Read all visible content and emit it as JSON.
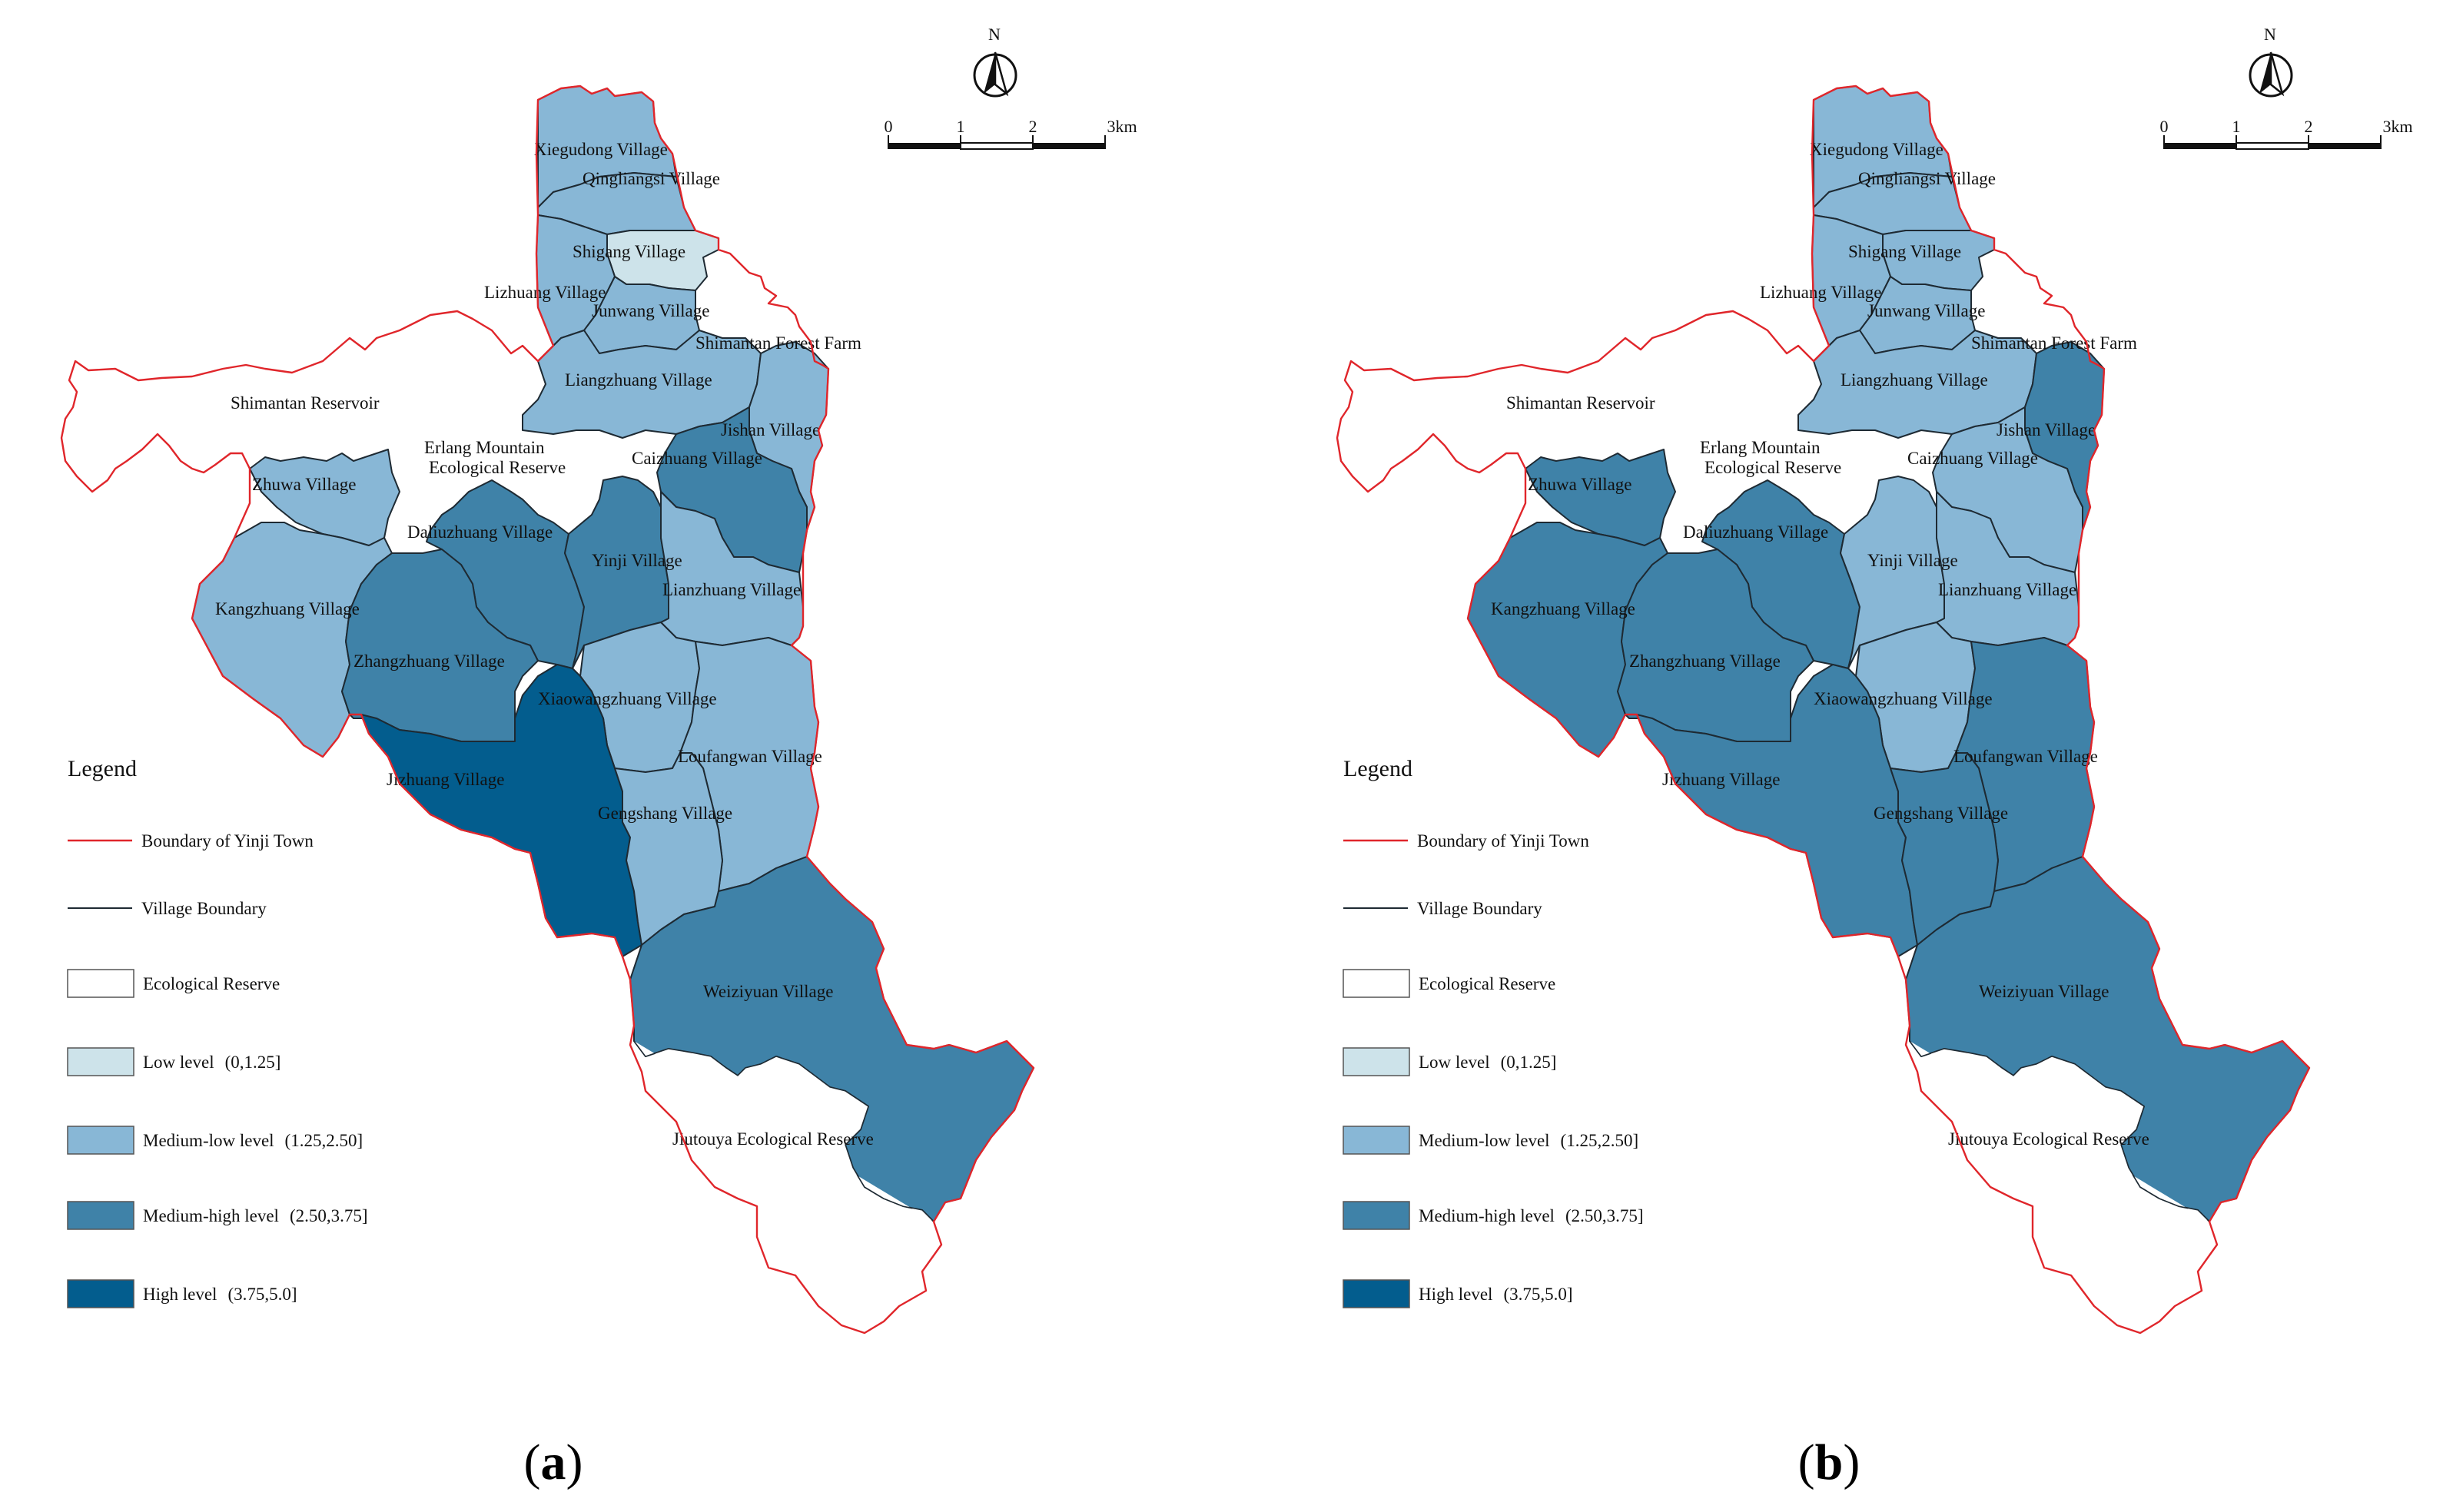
{
  "colors": {
    "boundary": "#e0262b",
    "village_boundary": "#1e2a33",
    "ecological": "#ffffff",
    "low": "#cde3ea",
    "medium_low": "#88b7d6",
    "medium_high": "#3f82a8",
    "high": "#035d8e"
  },
  "legend": {
    "title": "Legend",
    "items": [
      {
        "key": "boundary",
        "label": "Boundary of Yinji Town",
        "kind": "line-red"
      },
      {
        "key": "village",
        "label": "Village Boundary",
        "kind": "line-dark"
      },
      {
        "key": "eco",
        "label": "Ecological Reserve",
        "kind": "fill",
        "color_key": "ecological"
      },
      {
        "key": "low",
        "label": "Low level",
        "range": "(0,1.25]",
        "kind": "fill",
        "color_key": "low"
      },
      {
        "key": "mlow",
        "label": "Medium-low level",
        "range": "(1.25,2.50]",
        "kind": "fill",
        "color_key": "medium_low"
      },
      {
        "key": "mhigh",
        "label": "Medium-high level",
        "range": "(2.50,3.75]",
        "kind": "fill",
        "color_key": "medium_high"
      },
      {
        "key": "high",
        "label": "High level",
        "range": "(3.75,5.0]",
        "kind": "fill",
        "color_key": "high"
      }
    ]
  },
  "north_arrow": {
    "label": "N",
    "icon": "north-arrow-icon"
  },
  "scale_bar": {
    "ticks": [
      "0",
      "1",
      "2",
      "3km"
    ]
  },
  "places": {
    "xiegudong": "Xiegudong Village",
    "qingliangsi": "Qingliangsi Village",
    "shigang": "Shigang Village",
    "lizhuang": "Lizhuang Village",
    "junwang": "Junwang Village",
    "shimantan_forest": "Shimantan Forest Farm",
    "liangzhuang": "Liangzhuang Village",
    "shimantan_reservoir": "Shimantan Reservoir",
    "jishan": "Jishan Village",
    "erlang_1": "Erlang Mountain",
    "erlang_2": "Ecological Reserve",
    "caizhuang": "Caizhuang Village",
    "zhuwa": "Zhuwa Village",
    "daliuzhuang": "Daliuzhuang Village",
    "yinji": "Yinji Village",
    "lianzhuang": "Lianzhuang Village",
    "kangzhuang": "Kangzhuang Village",
    "zhangzhuang": "Zhangzhuang Village",
    "xiaowangzhuang": "Xiaowangzhuang Village",
    "loufangwan": "Loufangwan Village",
    "jizhuang": "Jizhuang Village",
    "gengshang": "Gengshang Village",
    "weiziyuan": "Weiziyuan Village",
    "jiutouya": "Jiutouya Ecological Reserve"
  },
  "panels": [
    {
      "id": "a",
      "label_open": "(",
      "label_letter": "a",
      "label_close": ")",
      "levels": {
        "xiegudong": "medium_low",
        "qingliangsi": "medium_low",
        "shigang": "low",
        "lizhuang": "medium_low",
        "junwang": "medium_low",
        "liangzhuang": "medium_low",
        "jishan": "medium_low",
        "caizhuang": "medium_high",
        "zhuwa": "medium_low",
        "daliuzhuang": "medium_high",
        "yinji": "medium_high",
        "lianzhuang": "medium_low",
        "kangzhuang": "medium_low",
        "zhangzhuang": "medium_high",
        "xiaowangzhuang": "medium_low",
        "loufangwan": "medium_low",
        "jizhuang": "high",
        "gengshang": "medium_low",
        "weiziyuan": "medium_high"
      }
    },
    {
      "id": "b",
      "label_open": "(",
      "label_letter": "b",
      "label_close": ")",
      "levels": {
        "xiegudong": "medium_low",
        "qingliangsi": "medium_low",
        "shigang": "medium_low",
        "lizhuang": "medium_low",
        "junwang": "medium_low",
        "liangzhuang": "medium_low",
        "jishan": "medium_high",
        "caizhuang": "medium_low",
        "zhuwa": "medium_high",
        "daliuzhuang": "medium_high",
        "yinji": "medium_low",
        "lianzhuang": "medium_low",
        "kangzhuang": "medium_high",
        "zhangzhuang": "medium_high",
        "xiaowangzhuang": "medium_low",
        "loufangwan": "medium_high",
        "jizhuang": "medium_high",
        "gengshang": "medium_high",
        "weiziyuan": "medium_high"
      }
    }
  ]
}
